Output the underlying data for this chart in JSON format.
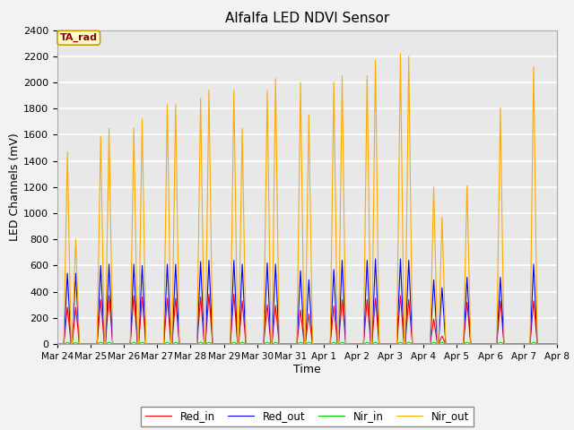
{
  "title": "Alfalfa LED NDVI Sensor",
  "xlabel": "Time",
  "ylabel": "LED Channels (mV)",
  "ylim": [
    0,
    2400
  ],
  "legend_label": "TA_rad",
  "line_colors": {
    "Red_in": "#ff0000",
    "Red_out": "#0000ff",
    "Nir_in": "#00cc00",
    "Nir_out": "#ffaa00"
  },
  "fig_facecolor": "#f2f2f2",
  "ax_facecolor": "#e8e8e8",
  "grid_color": "#ffffff",
  "tick_labels": [
    "Mar 24",
    "Mar 25",
    "Mar 26",
    "Mar 27",
    "Mar 28",
    "Mar 29",
    "Mar 30",
    "Mar 31",
    "Apr 1",
    "Apr 2",
    "Apr 3",
    "Apr 4",
    "Apr 5",
    "Apr 6",
    "Apr 7",
    "Apr 8"
  ],
  "nir_out_peaks": [
    1470,
    800,
    1590,
    1650,
    1650,
    1720,
    1830,
    1830,
    1880,
    1940,
    1940,
    1650,
    1940,
    2030,
    2000,
    1750,
    2000,
    2050,
    2050,
    2170,
    2220,
    2200,
    1200,
    970,
    1210,
    1810,
    2120
  ],
  "red_out_peaks": [
    540,
    540,
    600,
    610,
    610,
    600,
    610,
    610,
    630,
    640,
    640,
    610,
    620,
    610,
    560,
    490,
    570,
    640,
    640,
    650,
    650,
    640,
    490,
    430,
    510,
    510,
    610
  ],
  "red_in_peaks": [
    280,
    280,
    340,
    370,
    370,
    360,
    350,
    350,
    360,
    380,
    380,
    330,
    300,
    295,
    260,
    230,
    290,
    340,
    340,
    350,
    370,
    340,
    190,
    60,
    320,
    330,
    330
  ],
  "nir_in_peaks": [
    10,
    10,
    12,
    12,
    12,
    12,
    12,
    12,
    12,
    12,
    12,
    12,
    12,
    12,
    12,
    12,
    12,
    12,
    12,
    12,
    12,
    12,
    12,
    12,
    12,
    12,
    12
  ],
  "spike_day_positions": [
    0.3,
    0.55,
    1.3,
    1.55,
    2.3,
    2.55,
    3.3,
    3.55,
    4.3,
    4.55,
    5.3,
    5.55,
    6.3,
    6.55,
    7.3,
    7.55,
    8.3,
    8.55,
    9.3,
    9.55,
    10.3,
    10.55,
    11.3,
    11.55,
    12.3,
    13.3,
    14.3
  ],
  "yticks": [
    0,
    200,
    400,
    600,
    800,
    1000,
    1200,
    1400,
    1600,
    1800,
    2000,
    2200,
    2400
  ]
}
